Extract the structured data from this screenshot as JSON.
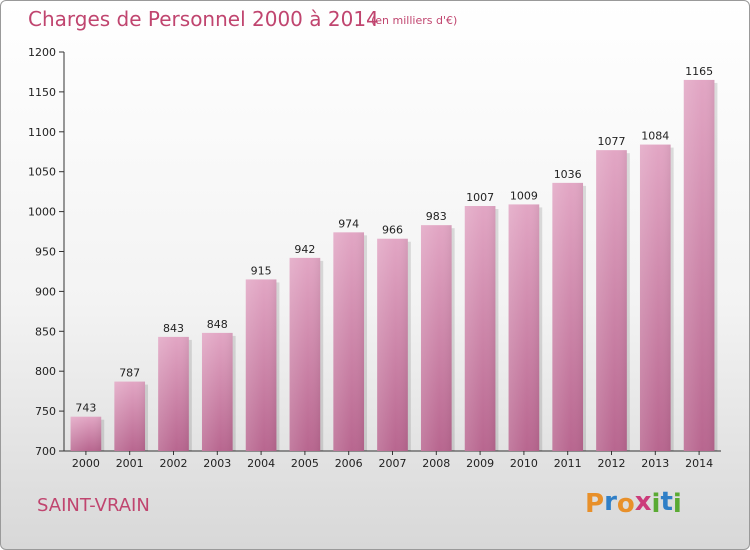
{
  "chart_data": {
    "type": "bar",
    "title": "Charges de Personnel 2000 à 2014",
    "subtitle": "(en milliers d'€)",
    "categories": [
      "2000",
      "2001",
      "2002",
      "2003",
      "2004",
      "2005",
      "2006",
      "2007",
      "2008",
      "2009",
      "2010",
      "2011",
      "2012",
      "2013",
      "2014"
    ],
    "values": [
      743,
      787,
      843,
      848,
      915,
      942,
      974,
      966,
      983,
      1007,
      1009,
      1036,
      1077,
      1084,
      1165
    ],
    "ylim": [
      700,
      1200
    ],
    "yticks": [
      700,
      750,
      800,
      850,
      900,
      950,
      1000,
      1050,
      1100,
      1150,
      1200
    ],
    "grid": false,
    "bar_color": "#d58db0"
  },
  "footer": {
    "place": "SAINT-VRAIN",
    "logo_letters": [
      "P",
      "r",
      "o",
      "x",
      "i",
      "t",
      "i"
    ],
    "logo_colors": [
      "#e8902a",
      "#2f7fc7",
      "#e8902a",
      "#cc3b7a",
      "#5aaa33",
      "#2f7fc7",
      "#5aaa33"
    ]
  }
}
